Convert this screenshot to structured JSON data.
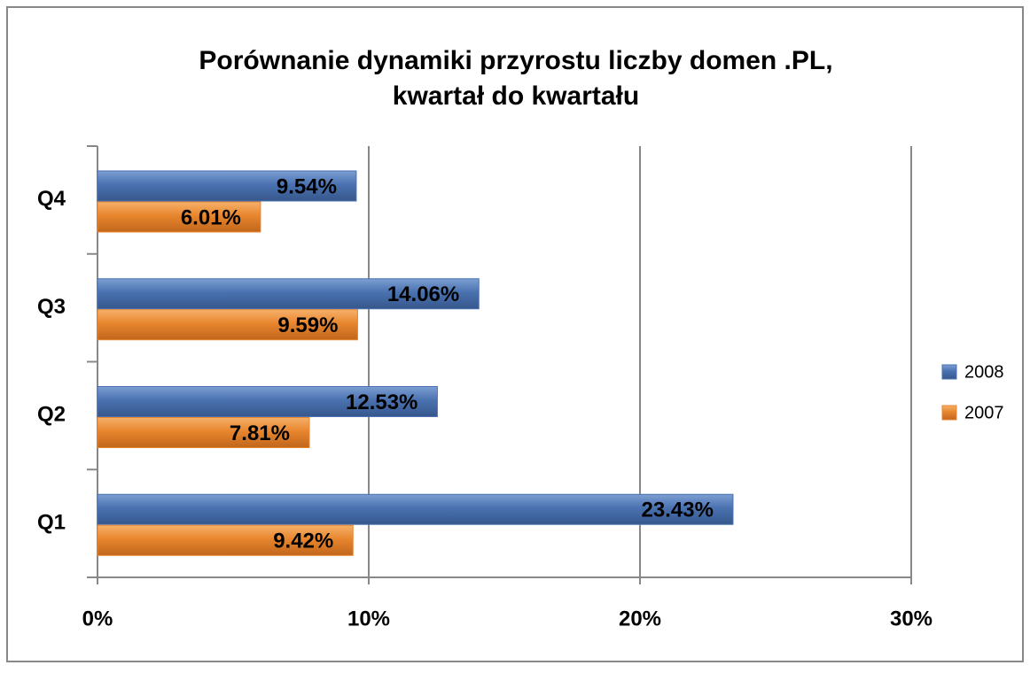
{
  "chart_data": {
    "type": "bar",
    "orientation": "horizontal",
    "title": [
      "Porównanie dynamiki przyrostu liczby domen .PL,",
      "kwartał do kwartału"
    ],
    "categories": [
      "Q1",
      "Q2",
      "Q3",
      "Q4"
    ],
    "series": [
      {
        "name": "2008",
        "color": "#4a72b0",
        "values": [
          23.43,
          12.53,
          14.06,
          9.54
        ],
        "value_labels": [
          "23.43%",
          "12.53%",
          "14.06%",
          "9.54%"
        ]
      },
      {
        "name": "2007",
        "color": "#e8862e",
        "values": [
          9.42,
          7.81,
          9.59,
          6.01
        ],
        "value_labels": [
          "9.42%",
          "7.81%",
          "9.59%",
          "6.01%"
        ]
      }
    ],
    "xlim": [
      0,
      30
    ],
    "xticks": [
      {
        "value": 0,
        "label": "0%"
      },
      {
        "value": 10,
        "label": "10%"
      },
      {
        "value": 20,
        "label": "20%"
      },
      {
        "value": 30,
        "label": "30%"
      }
    ],
    "grid": true,
    "legend": "right"
  }
}
